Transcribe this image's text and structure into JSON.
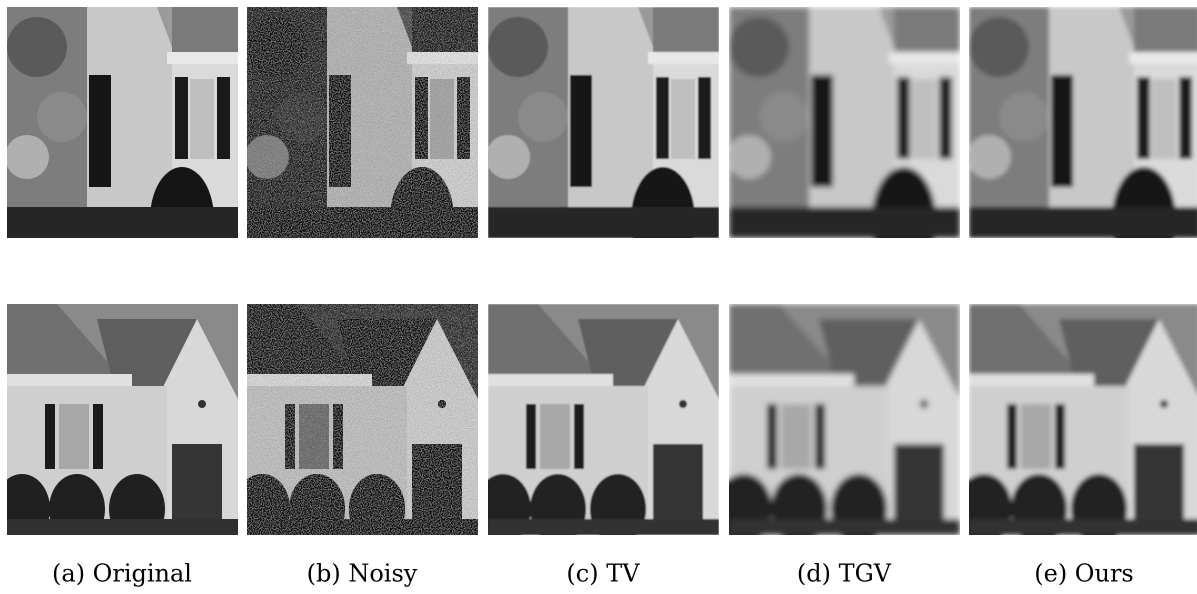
{
  "figure": {
    "captions": [
      "(a) Original",
      "(b) Noisy",
      "(c) TV",
      "(d) TGV",
      "(e) Ours"
    ]
  }
}
